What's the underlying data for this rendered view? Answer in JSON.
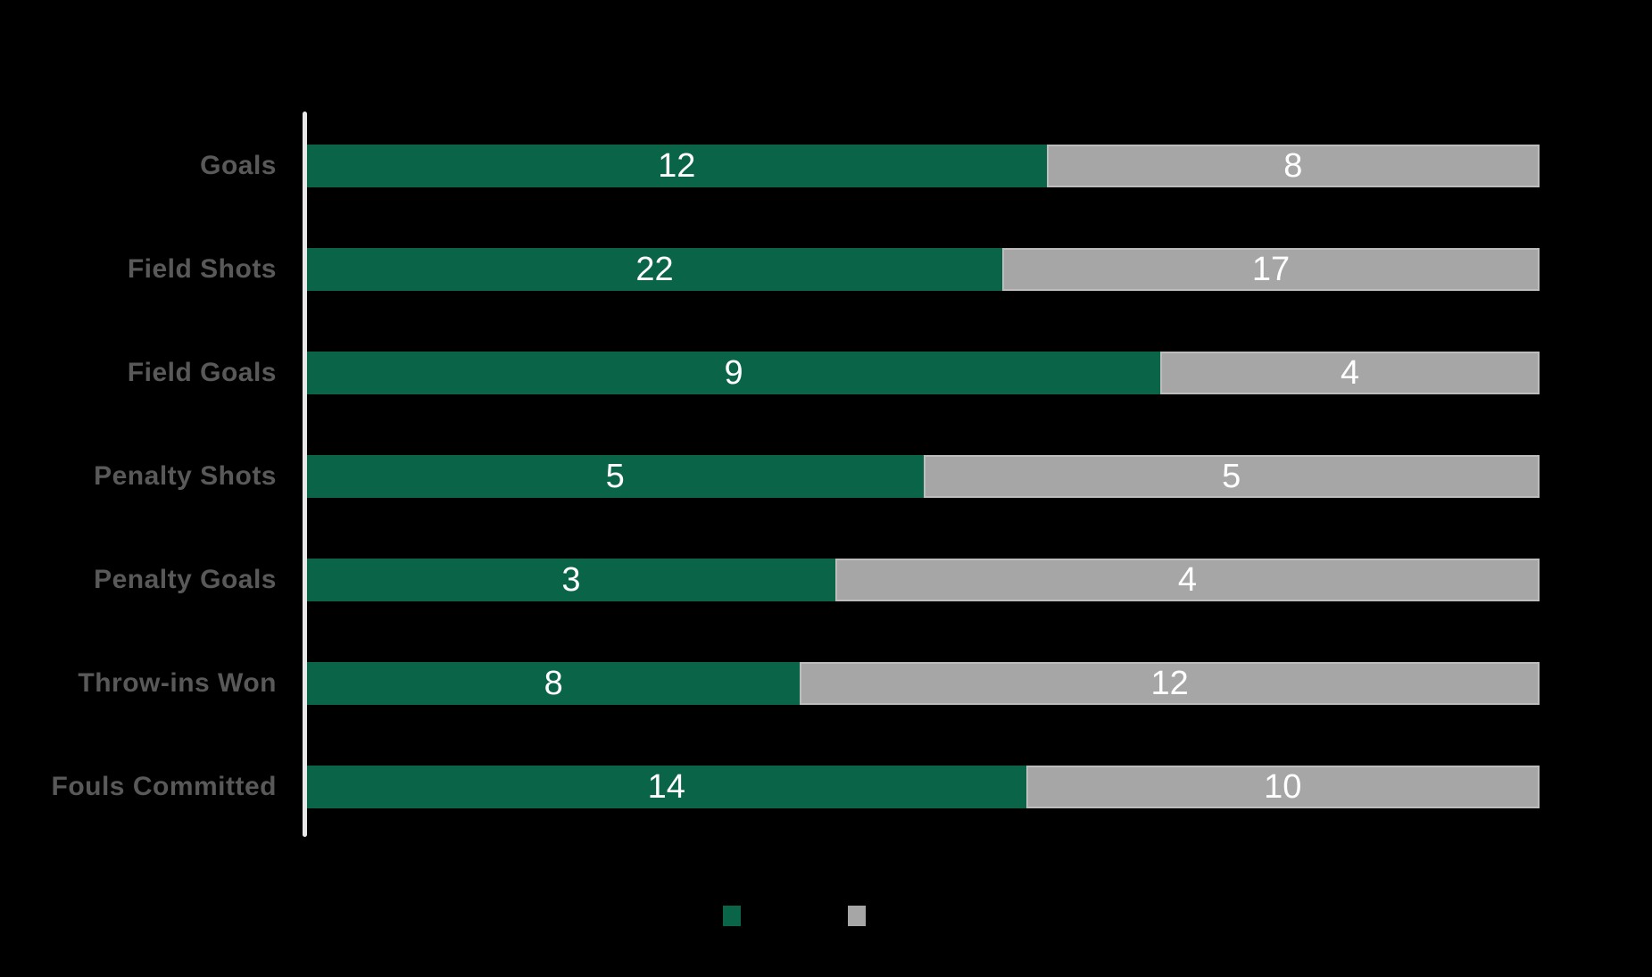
{
  "page": {
    "background_color": "#000000"
  },
  "chart_data": {
    "type": "bar",
    "orientation": "horizontal",
    "stacked": true,
    "normalized_100_percent": true,
    "title": "",
    "xlabel": "",
    "ylabel": "",
    "grid": false,
    "categories": [
      "Goals",
      "Field Shots",
      "Field Goals",
      "Penalty Shots",
      "Penalty Goals",
      "Throw-ins Won",
      "Fouls Committed"
    ],
    "series": [
      {
        "name": "green-series",
        "color": "#0a6448",
        "values": [
          12,
          22,
          9,
          5,
          3,
          8,
          14
        ]
      },
      {
        "name": "gray-series",
        "color": "#a6a6a6",
        "values": [
          8,
          17,
          4,
          5,
          4,
          12,
          10
        ]
      }
    ],
    "value_label_color": "#ffffff",
    "category_label_color": "#595959",
    "axis_line_color": "#e8e8e8",
    "legend": {
      "position": "bottom",
      "markers": [
        {
          "name": "green-marker",
          "color": "#0a6448",
          "label": ""
        },
        {
          "name": "gray-marker",
          "color": "#a6a6a6",
          "label": ""
        }
      ]
    }
  }
}
